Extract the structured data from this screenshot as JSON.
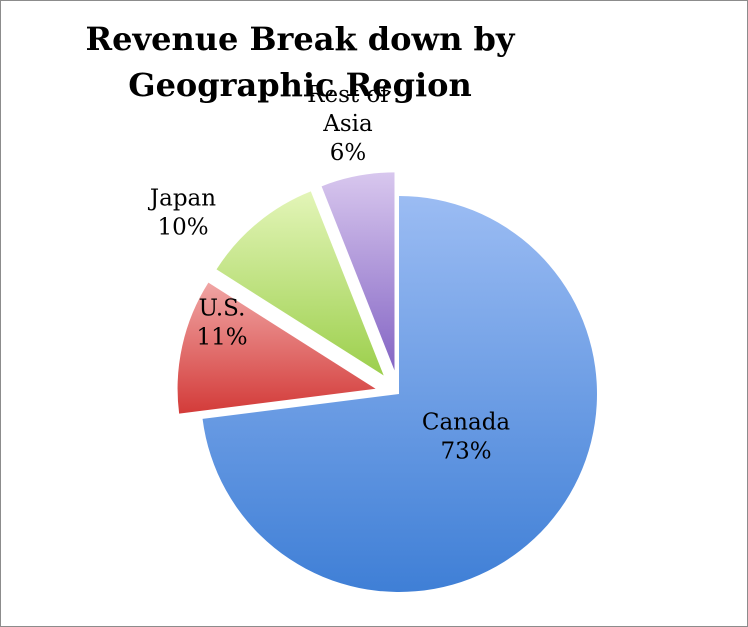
{
  "chart_data": {
    "type": "pie",
    "title_lines": [
      "Revenue Break down by",
      "Geographic Region"
    ],
    "slices": [
      {
        "name": "Canada",
        "label_lines": [
          "Canada"
        ],
        "value": 73,
        "value_label": "73%",
        "color_light": "#9bbcf3",
        "color_dark": "#3f7fd6",
        "exploded": false
      },
      {
        "name": "U.S.",
        "label_lines": [
          "U.S."
        ],
        "value": 11,
        "value_label": "11%",
        "color_light": "#f0a5a4",
        "color_dark": "#d33b39",
        "exploded": true
      },
      {
        "name": "Japan",
        "label_lines": [
          "Japan"
        ],
        "value": 10,
        "value_label": "10%",
        "color_light": "#e3f5b8",
        "color_dark": "#9ccf4c",
        "exploded": true
      },
      {
        "name": "Rest of Asia",
        "label_lines": [
          "Rest of",
          "Asia"
        ],
        "value": 6,
        "value_label": "6%",
        "color_light": "#d8c7ee",
        "color_dark": "#8465c4",
        "exploded": true
      }
    ]
  }
}
